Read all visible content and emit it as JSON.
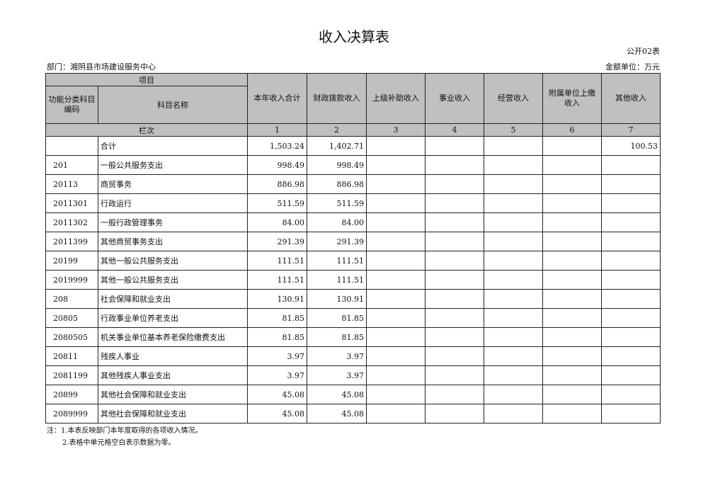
{
  "title": "收入决算表",
  "form_code": "公开02表",
  "department": "部门：湘阴县市场建设服务中心",
  "unit": "金额单位：万元",
  "header": {
    "item": "项目",
    "code": "功能分类科目编码",
    "name": "科目名称",
    "col_index": "栏次",
    "columns": [
      "本年收入合计",
      "财政拨款收入",
      "上级补助收入",
      "事业收入",
      "经营收入",
      "附属单位上缴收入",
      "其他收入"
    ],
    "numbers": [
      "1",
      "2",
      "3",
      "4",
      "5",
      "6",
      "7"
    ]
  },
  "rows": [
    {
      "code": "",
      "name": "合计",
      "v": [
        "1,503.24",
        "1,402.71",
        "",
        "",
        "",
        "",
        "100.53"
      ]
    },
    {
      "code": "201",
      "name": "一般公共服务支出",
      "v": [
        "998.49",
        "998.49",
        "",
        "",
        "",
        "",
        ""
      ]
    },
    {
      "code": "20113",
      "name": "商贸事务",
      "v": [
        "886.98",
        "886.98",
        "",
        "",
        "",
        "",
        ""
      ]
    },
    {
      "code": "2011301",
      "name": "行政运行",
      "v": [
        "511.59",
        "511.59",
        "",
        "",
        "",
        "",
        ""
      ]
    },
    {
      "code": "2011302",
      "name": "一般行政管理事务",
      "v": [
        "84.00",
        "84.00",
        "",
        "",
        "",
        "",
        ""
      ]
    },
    {
      "code": "2011399",
      "name": "其他商贸事务支出",
      "v": [
        "291.39",
        "291.39",
        "",
        "",
        "",
        "",
        ""
      ]
    },
    {
      "code": "20199",
      "name": "其他一般公共服务支出",
      "v": [
        "111.51",
        "111.51",
        "",
        "",
        "",
        "",
        ""
      ]
    },
    {
      "code": "2019999",
      "name": "其他一般公共服务支出",
      "v": [
        "111.51",
        "111.51",
        "",
        "",
        "",
        "",
        ""
      ]
    },
    {
      "code": "208",
      "name": "社会保障和就业支出",
      "v": [
        "130.91",
        "130.91",
        "",
        "",
        "",
        "",
        ""
      ]
    },
    {
      "code": "20805",
      "name": "行政事业单位养老支出",
      "v": [
        "81.85",
        "81.85",
        "",
        "",
        "",
        "",
        ""
      ]
    },
    {
      "code": "2080505",
      "name": "机关事业单位基本养老保险缴费支出",
      "v": [
        "81.85",
        "81.85",
        "",
        "",
        "",
        "",
        ""
      ]
    },
    {
      "code": "20811",
      "name": "残疾人事业",
      "v": [
        "3.97",
        "3.97",
        "",
        "",
        "",
        "",
        ""
      ]
    },
    {
      "code": "2081199",
      "name": "其他残疾人事业支出",
      "v": [
        "3.97",
        "3.97",
        "",
        "",
        "",
        "",
        ""
      ]
    },
    {
      "code": "20899",
      "name": "其他社会保障和就业支出",
      "v": [
        "45.08",
        "45.08",
        "",
        "",
        "",
        "",
        ""
      ]
    },
    {
      "code": "2089999",
      "name": "其他社会保障和就业支出",
      "v": [
        "45.08",
        "45.08",
        "",
        "",
        "",
        "",
        ""
      ]
    }
  ],
  "notes": [
    "注：1.本表反映部门本年度取得的各项收入情况。",
    "2.表格中单元格空白表示数据为零。"
  ]
}
